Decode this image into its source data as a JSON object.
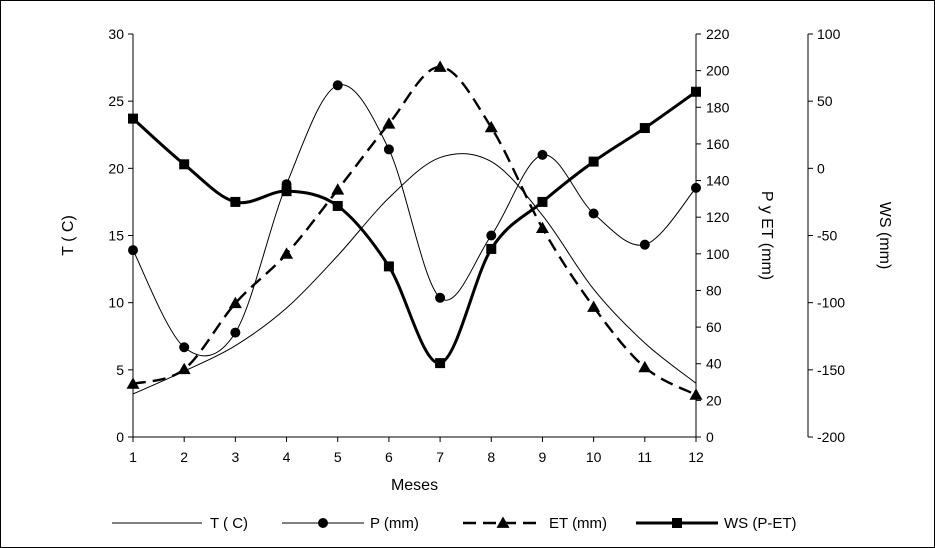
{
  "chart_data": {
    "type": "line",
    "title": "",
    "xlabel": "Meses",
    "categories": [
      1,
      2,
      3,
      4,
      5,
      6,
      7,
      8,
      9,
      10,
      11,
      12
    ],
    "xlim": [
      1,
      12
    ],
    "axes": {
      "left": {
        "label": "T ( C)",
        "ylim": [
          0,
          30
        ],
        "ticks": [
          0,
          5,
          10,
          15,
          20,
          25,
          30
        ]
      },
      "mid": {
        "label": "P y ET (mm)",
        "ylim": [
          0,
          220
        ],
        "ticks": [
          0,
          20,
          40,
          60,
          80,
          100,
          120,
          140,
          160,
          180,
          200,
          220
        ]
      },
      "right": {
        "label": "WS (mm)",
        "ylim": [
          -200,
          100
        ],
        "ticks": [
          -200,
          -150,
          -100,
          -50,
          0,
          50,
          100
        ]
      }
    },
    "x_ticks": [
      "1",
      "2",
      "3",
      "4",
      "5",
      "6",
      "7",
      "8",
      "9",
      "10",
      "11",
      "12"
    ],
    "series": [
      {
        "name": "T ( C)",
        "axis": "left",
        "marker": "none",
        "dash": "solid",
        "width": "thin",
        "values": [
          3.2,
          4.9,
          6.8,
          9.6,
          13.5,
          17.8,
          20.8,
          20.5,
          16.5,
          11.0,
          7.0,
          4.0
        ]
      },
      {
        "name": "P (mm)",
        "axis": "mid",
        "marker": "circle",
        "dash": "solid",
        "width": "thin",
        "values": [
          102,
          49,
          57,
          138,
          192,
          157,
          76,
          110,
          154,
          122,
          105,
          136
        ]
      },
      {
        "name": "ET (mm)",
        "axis": "mid",
        "marker": "triangle",
        "dash": "dashed",
        "width": "medium",
        "values": [
          29,
          37,
          73,
          100,
          135,
          171,
          202,
          169,
          114,
          71,
          38,
          23
        ]
      },
      {
        "name": "WS (P-ET)",
        "axis": "right",
        "marker": "square",
        "dash": "solid",
        "width": "thick",
        "values": [
          37,
          3,
          -25,
          -17,
          -28,
          -73,
          -145,
          -60,
          -25,
          5,
          30,
          57
        ]
      }
    ],
    "legend": {
      "placement": "bottom"
    },
    "grid": false
  }
}
